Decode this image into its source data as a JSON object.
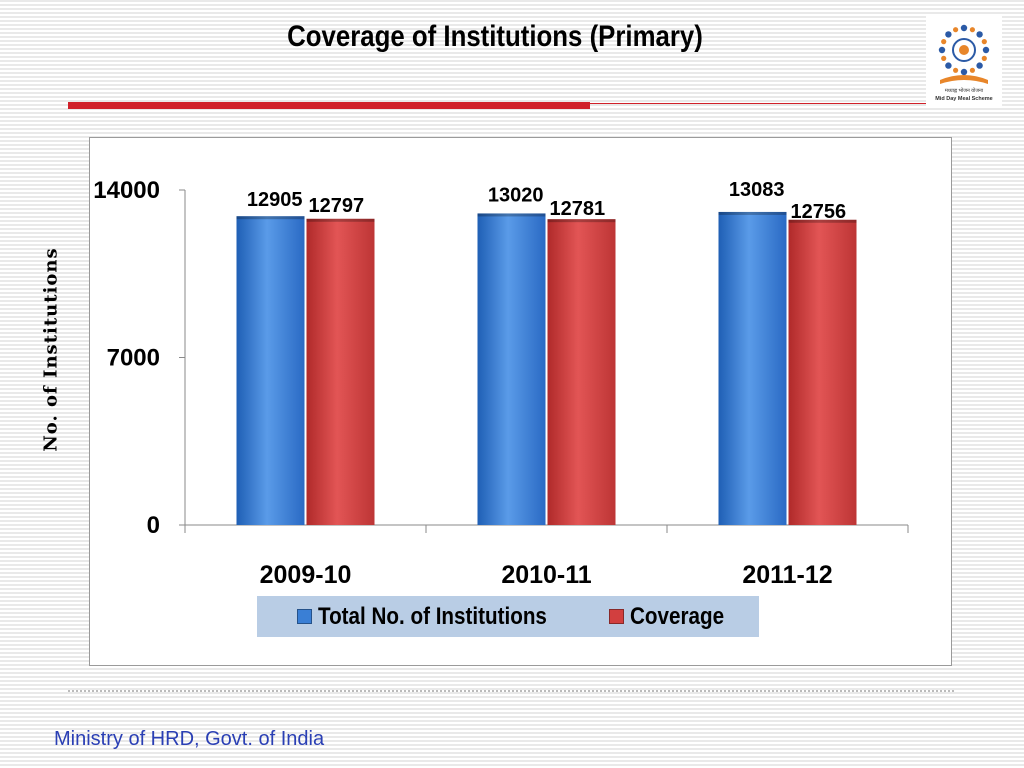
{
  "slide": {
    "title": "Coverage  of Institutions (Primary)",
    "footer": "Ministry of HRD, Govt. of India",
    "logo_caption_hindi": "मध्याह्न भोजन योजना",
    "logo_caption_english": "Mid Day Meal Scheme"
  },
  "colors": {
    "series_total": "#3a7fd5",
    "series_coverage": "#d23f3f",
    "title_rule": "#d0212a",
    "footer_text": "#2a3fb4",
    "legend_background": "#b9cde5"
  },
  "chart_data": {
    "type": "bar",
    "categories": [
      "2009-10",
      "2010-11",
      "2011-12"
    ],
    "series": [
      {
        "name": "Total No. of Institutions",
        "values": [
          12905,
          13020,
          13083
        ]
      },
      {
        "name": "Coverage",
        "values": [
          12797,
          12781,
          12756
        ]
      }
    ],
    "value_labels": [
      [
        "12905",
        "13020",
        "13083"
      ],
      [
        "12797",
        "12781",
        "12756"
      ]
    ],
    "ylabel": "No. of Institutions",
    "yticks": [
      0,
      7000,
      14000
    ],
    "ytick_labels": [
      "0",
      "7000",
      "14000"
    ],
    "ylim": [
      0,
      14000
    ],
    "grid": false,
    "legend_position": "bottom"
  }
}
